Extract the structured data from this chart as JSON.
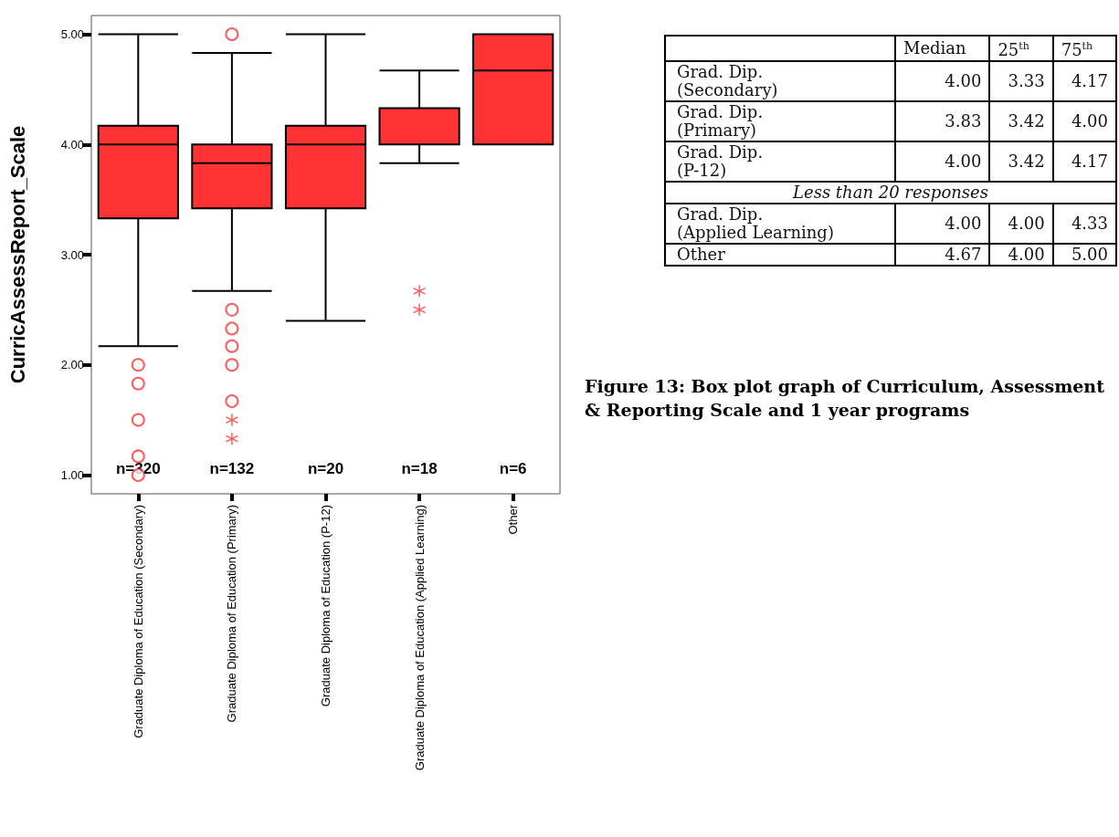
{
  "chart_data": [
    {
      "type": "box",
      "ylabel": "CurricAssessReport_Scale",
      "categories": [
        "Graduate Diploma of Education (Secondary)",
        "Graduate Diploma of Education (Primary)",
        "Graduate Diploma of Education (P-12)",
        "Graduate Diploma of Education (Applied Learning)",
        "Other"
      ],
      "color": "#ff3333",
      "boxes": [
        {
          "low": 2.17,
          "q1": 3.33,
          "median": 4.0,
          "q3": 4.17,
          "high": 5.0,
          "outliers": [
            2.0,
            1.83,
            1.5,
            1.17,
            1.0
          ]
        },
        {
          "low": 2.67,
          "q1": 3.42,
          "median": 3.83,
          "q3": 4.0,
          "high": 4.83,
          "outliers": [
            5.0,
            2.5,
            2.33,
            2.17,
            2.0,
            1.67
          ]
        },
        {
          "low": 2.4,
          "q1": 3.42,
          "median": 4.0,
          "q3": 4.17,
          "high": 5.0
        },
        {
          "low": 3.83,
          "q1": 4.0,
          "median": 4.0,
          "q3": 4.33,
          "high": 4.67
        },
        {
          "low": 4.0,
          "q1": 4.0,
          "median": 4.67,
          "q3": 5.0,
          "high": 5.0
        }
      ],
      "series": [
        {
          "type": "scatter",
          "marker": "cross",
          "color": "#ff3333",
          "x": [
            "Graduate Diploma of Education (Primary)",
            "Graduate Diploma of Education (Primary)",
            "Graduate Diploma of Education (Applied Learning)",
            "Graduate Diploma of Education (Applied Learning)"
          ],
          "values": [
            1.5,
            1.33,
            2.67,
            2.5
          ]
        }
      ],
      "ylim": [
        0.83,
        5.17
      ],
      "yticks": [
        {
          "value": 1,
          "label": "1.00"
        },
        {
          "value": 2,
          "label": "2.00"
        },
        {
          "value": 3,
          "label": "3.00"
        },
        {
          "value": 4,
          "label": "4.00"
        },
        {
          "value": 5,
          "label": "5.00"
        }
      ],
      "grid": false,
      "annotations": [
        "n=320",
        "n=132",
        "n=20",
        "n=18",
        "n=6"
      ]
    },
    {
      "type": "other",
      "categories": [
        "Grad. Dip.\n(Secondary)",
        "Grad. Dip.\n(Primary)",
        "Grad. Dip.\n(P-12)",
        "Less than 20 responses",
        "Grad. Dip.\n(Applied Learning)",
        "Other"
      ],
      "series": [
        {
          "name": "Median",
          "values": [
            4.0,
            3.83,
            4.0,
            null,
            4.0,
            4.67
          ],
          "value_labels": [
            "4.00",
            "3.83",
            "4.00",
            null,
            "4.00",
            "4.67"
          ]
        },
        {
          "name": "25$^{th}$",
          "values": [
            3.33,
            3.42,
            3.42,
            null,
            4.0,
            4.0
          ],
          "value_labels": [
            "3.33",
            "3.42",
            "3.42",
            null,
            "4.00",
            "4.00"
          ]
        },
        {
          "name": "75$^{th}$",
          "values": [
            4.17,
            4.0,
            4.17,
            null,
            4.33,
            5.0
          ],
          "value_labels": [
            "4.17",
            "4.00",
            "4.17",
            null,
            "4.33",
            "5.00"
          ]
        }
      ],
      "annotations": [
        "Figure 13: Box plot graph of Curriculum, Assessment & Reporting Scale and 1 year programs"
      ]
    }
  ]
}
